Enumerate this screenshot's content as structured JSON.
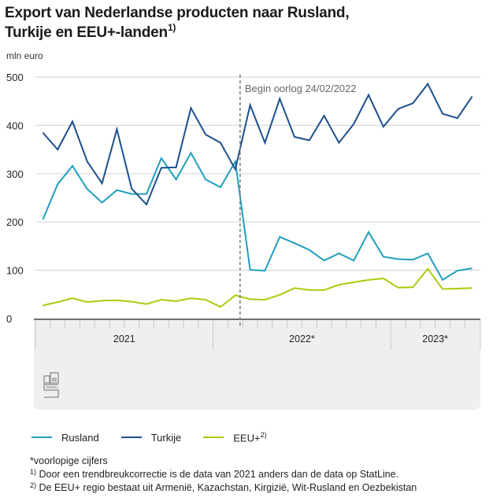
{
  "header": {
    "title_line1": "Export van Nederlandse producten naar Rusland,",
    "title_line2": "Turkije en EEU+-landen",
    "title_footnote": "1)",
    "unit": "mln euro"
  },
  "chart_data": {
    "type": "line",
    "title": "Export van Nederlandse producten naar Rusland, Turkije en EEU+-landen",
    "ylabel": "mln euro",
    "xlabel": "",
    "ylim": [
      0,
      500
    ],
    "yticks": [
      0,
      100,
      200,
      300,
      400,
      500
    ],
    "grid": true,
    "x": [
      "2021-01",
      "2021-02",
      "2021-03",
      "2021-04",
      "2021-05",
      "2021-06",
      "2021-07",
      "2021-08",
      "2021-09",
      "2021-10",
      "2021-11",
      "2021-12",
      "2022-01",
      "2022-02",
      "2022-03",
      "2022-04",
      "2022-05",
      "2022-06",
      "2022-07",
      "2022-08",
      "2022-09",
      "2022-10",
      "2022-11",
      "2022-12",
      "2023-01",
      "2023-02",
      "2023-03",
      "2023-04",
      "2023-05",
      "2023-06"
    ],
    "year_groups": [
      {
        "label": "2021",
        "months": 12
      },
      {
        "label": "2022*",
        "months": 12
      },
      {
        "label": "2023*",
        "months": 6
      }
    ],
    "series": [
      {
        "name": "Rusland",
        "color": "#1f9fbf",
        "values": [
          205,
          278,
          316,
          268,
          240,
          266,
          258,
          258,
          332,
          288,
          343,
          288,
          272,
          325,
          101,
          99,
          169,
          156,
          142,
          120,
          135,
          120,
          179,
          128,
          123,
          122,
          135,
          80,
          99,
          104
        ]
      },
      {
        "name": "Turkije",
        "color": "#1c4f8e",
        "values": [
          385,
          350,
          408,
          325,
          280,
          392,
          269,
          236,
          312,
          313,
          436,
          381,
          364,
          309,
          442,
          364,
          455,
          376,
          369,
          420,
          364,
          403,
          463,
          397,
          434,
          446,
          486,
          424,
          415,
          460
        ]
      },
      {
        "name": "EEU+",
        "name_footnote": "2)",
        "color": "#adc90e",
        "values": [
          27,
          34,
          42,
          34,
          37,
          38,
          35,
          30,
          39,
          36,
          42,
          39,
          24,
          48,
          40,
          39,
          49,
          63,
          59,
          59,
          70,
          75,
          80,
          83,
          64,
          65,
          103,
          61,
          62,
          63
        ]
      }
    ],
    "annotations": [
      {
        "type": "vline",
        "x": "2022-02-24",
        "label": "Begin oorlog 24/02/2022"
      }
    ],
    "legend_position": "bottom"
  },
  "legend": [
    {
      "label": "Rusland",
      "footnote": ""
    },
    {
      "label": "Turkije",
      "footnote": ""
    },
    {
      "label": "EEU+",
      "footnote": "2)"
    }
  ],
  "notes": {
    "provisional": "*voorlopige cijfers",
    "note1_marker": "1)",
    "note1": " Door een trendbreukcorrectie is de data van 2021 anders dan de data op StatLine.",
    "note2_marker": "2)",
    "note2": " De EEU+ regio bestaat uit Armenië, Kazachstan, Kirgizië, Wit-Rusland en Oezbekistan"
  },
  "logo": {
    "name": "cbs"
  }
}
